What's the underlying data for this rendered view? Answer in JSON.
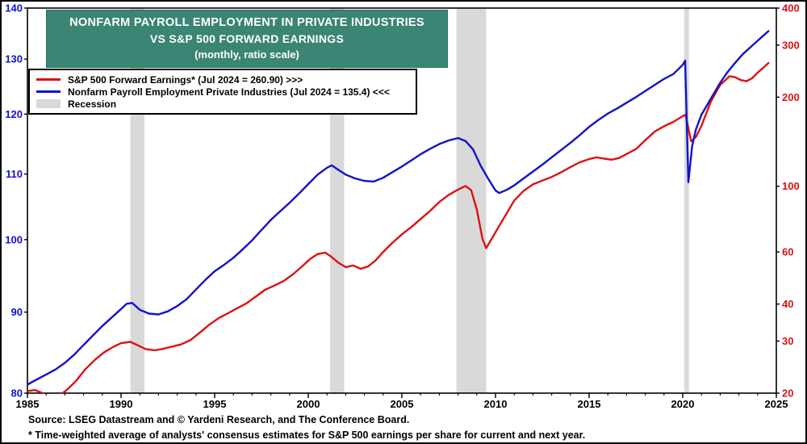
{
  "title": {
    "line1": "NONFARM PAYROLL EMPLOYMENT IN PRIVATE INDUSTRIES",
    "line2": "VS S&P 500 FORWARD EARNINGS",
    "line3": "(monthly, ratio scale)"
  },
  "legend": {
    "sp500": "S&P 500 Forward Earnings*  (Jul 2024 = 260.90) >>>",
    "payroll": "Nonfarm Payroll Employment Private Industries (Jul 2024 = 135.4) <<<",
    "recession": "Recession"
  },
  "footer": {
    "source": "Source: LSEG Datastream and © Yardeni Research, and The Conference Board.",
    "footnote": "* Time-weighted average of analysts' consensus estimates for S&P 500 earnings per share for current and next year."
  },
  "colors": {
    "sp500_red": "#dd1111",
    "payroll_blue": "#1212cc",
    "title_bg": "#3a8573",
    "recession_gray": "#d9d9d9",
    "frame_black": "#000000"
  },
  "chart_data": {
    "type": "line",
    "title": "Nonfarm Payroll Employment in Private Industries vs S&P 500 Forward Earnings (monthly, ratio scale)",
    "x_range": [
      1985,
      2025
    ],
    "x_ticks": [
      1985,
      1990,
      1995,
      2000,
      2005,
      2010,
      2015,
      2020,
      2025
    ],
    "left_axis": {
      "scale": "log",
      "range": [
        80,
        140
      ],
      "ticks": [
        80,
        90,
        100,
        110,
        120,
        130,
        140
      ],
      "color": "#1212cc"
    },
    "right_axis": {
      "scale": "log",
      "range": [
        20,
        400
      ],
      "ticks": [
        20,
        30,
        40,
        60,
        100,
        200,
        300,
        400
      ],
      "color": "#dd1111"
    },
    "recessions": [
      [
        1990.5,
        1991.25
      ],
      [
        2001.17,
        2001.92
      ],
      [
        2007.92,
        2009.5
      ],
      [
        2020.08,
        2020.33
      ]
    ],
    "series": [
      {
        "id": "sp500-forward-earnings",
        "name": "S&P 500 Forward Earnings",
        "axis": "right",
        "color": "#dd1111",
        "points": [
          [
            1985.0,
            20.3
          ],
          [
            1985.4,
            20.5
          ],
          [
            1985.8,
            20.0
          ],
          [
            1986.2,
            19.5
          ],
          [
            1986.7,
            19.6
          ],
          [
            1987.1,
            20.5
          ],
          [
            1987.6,
            22.0
          ],
          [
            1988.1,
            24.1
          ],
          [
            1988.6,
            25.9
          ],
          [
            1989.1,
            27.5
          ],
          [
            1989.6,
            28.7
          ],
          [
            1990.0,
            29.5
          ],
          [
            1990.5,
            29.8
          ],
          [
            1990.9,
            29.0
          ],
          [
            1991.3,
            28.2
          ],
          [
            1991.8,
            27.9
          ],
          [
            1992.2,
            28.2
          ],
          [
            1992.7,
            28.7
          ],
          [
            1993.2,
            29.2
          ],
          [
            1993.7,
            30.2
          ],
          [
            1994.2,
            32.0
          ],
          [
            1994.7,
            34.0
          ],
          [
            1995.2,
            35.8
          ],
          [
            1995.7,
            37.2
          ],
          [
            1996.2,
            38.7
          ],
          [
            1996.7,
            40.2
          ],
          [
            1997.2,
            42.4
          ],
          [
            1997.7,
            44.7
          ],
          [
            1998.2,
            46.2
          ],
          [
            1998.7,
            47.9
          ],
          [
            1999.2,
            50.5
          ],
          [
            1999.7,
            53.8
          ],
          [
            2000.1,
            56.8
          ],
          [
            2000.5,
            59.0
          ],
          [
            2000.9,
            59.7
          ],
          [
            2001.2,
            58.0
          ],
          [
            2001.6,
            55.2
          ],
          [
            2002.0,
            53.3
          ],
          [
            2002.4,
            54.0
          ],
          [
            2002.8,
            52.6
          ],
          [
            2003.2,
            53.6
          ],
          [
            2003.6,
            56.2
          ],
          [
            2004.0,
            60.0
          ],
          [
            2004.5,
            64.5
          ],
          [
            2005.0,
            68.8
          ],
          [
            2005.5,
            72.8
          ],
          [
            2006.0,
            77.5
          ],
          [
            2006.5,
            82.5
          ],
          [
            2007.0,
            88.5
          ],
          [
            2007.5,
            93.5
          ],
          [
            2008.0,
            97.5
          ],
          [
            2008.4,
            100.2
          ],
          [
            2008.7,
            97.0
          ],
          [
            2009.0,
            83.5
          ],
          [
            2009.3,
            66.5
          ],
          [
            2009.5,
            61.8
          ],
          [
            2009.8,
            66.5
          ],
          [
            2010.2,
            73.5
          ],
          [
            2010.6,
            81.0
          ],
          [
            2011.0,
            89.5
          ],
          [
            2011.5,
            96.5
          ],
          [
            2012.0,
            101.5
          ],
          [
            2012.5,
            104.5
          ],
          [
            2013.0,
            107.5
          ],
          [
            2013.5,
            111.5
          ],
          [
            2014.0,
            116.0
          ],
          [
            2014.5,
            120.5
          ],
          [
            2015.0,
            123.5
          ],
          [
            2015.4,
            125.2
          ],
          [
            2015.8,
            124.0
          ],
          [
            2016.2,
            123.0
          ],
          [
            2016.6,
            124.5
          ],
          [
            2017.0,
            128.5
          ],
          [
            2017.5,
            133.5
          ],
          [
            2018.0,
            143.0
          ],
          [
            2018.5,
            153.0
          ],
          [
            2019.0,
            159.5
          ],
          [
            2019.5,
            165.0
          ],
          [
            2020.0,
            172.5
          ],
          [
            2020.15,
            174.5
          ],
          [
            2020.45,
            142.0
          ],
          [
            2020.7,
            146.5
          ],
          [
            2021.0,
            160.0
          ],
          [
            2021.5,
            193.0
          ],
          [
            2022.0,
            220.0
          ],
          [
            2022.5,
            235.5
          ],
          [
            2022.8,
            233.5
          ],
          [
            2023.1,
            228.5
          ],
          [
            2023.4,
            226.5
          ],
          [
            2023.7,
            231.5
          ],
          [
            2024.0,
            242.0
          ],
          [
            2024.3,
            251.5
          ],
          [
            2024.58,
            260.9
          ]
        ]
      },
      {
        "id": "private-payroll-employment",
        "name": "Nonfarm Payroll Employment Private Industries",
        "axis": "left",
        "color": "#1212cc",
        "points": [
          [
            1985.0,
            81.0
          ],
          [
            1985.5,
            81.6
          ],
          [
            1986.0,
            82.2
          ],
          [
            1986.5,
            82.8
          ],
          [
            1987.0,
            83.6
          ],
          [
            1987.5,
            84.6
          ],
          [
            1988.0,
            85.8
          ],
          [
            1988.5,
            87.0
          ],
          [
            1989.0,
            88.2
          ],
          [
            1989.5,
            89.3
          ],
          [
            1990.0,
            90.4
          ],
          [
            1990.3,
            91.1
          ],
          [
            1990.6,
            91.2
          ],
          [
            1991.0,
            90.3
          ],
          [
            1991.5,
            89.8
          ],
          [
            1992.0,
            89.7
          ],
          [
            1992.5,
            90.1
          ],
          [
            1993.0,
            90.8
          ],
          [
            1993.5,
            91.7
          ],
          [
            1994.0,
            93.0
          ],
          [
            1994.5,
            94.3
          ],
          [
            1995.0,
            95.5
          ],
          [
            1995.5,
            96.4
          ],
          [
            1996.0,
            97.4
          ],
          [
            1996.5,
            98.6
          ],
          [
            1997.0,
            99.9
          ],
          [
            1997.5,
            101.4
          ],
          [
            1998.0,
            102.9
          ],
          [
            1998.5,
            104.2
          ],
          [
            1999.0,
            105.5
          ],
          [
            1999.5,
            106.9
          ],
          [
            2000.0,
            108.4
          ],
          [
            2000.5,
            109.9
          ],
          [
            2001.0,
            111.0
          ],
          [
            2001.25,
            111.4
          ],
          [
            2001.6,
            110.7
          ],
          [
            2002.0,
            109.9
          ],
          [
            2002.5,
            109.3
          ],
          [
            2003.0,
            108.9
          ],
          [
            2003.5,
            108.8
          ],
          [
            2004.0,
            109.4
          ],
          [
            2004.5,
            110.3
          ],
          [
            2005.0,
            111.2
          ],
          [
            2005.5,
            112.2
          ],
          [
            2006.0,
            113.2
          ],
          [
            2006.5,
            114.1
          ],
          [
            2007.0,
            114.9
          ],
          [
            2007.5,
            115.5
          ],
          [
            2008.0,
            115.9
          ],
          [
            2008.4,
            115.4
          ],
          [
            2008.8,
            114.0
          ],
          [
            2009.2,
            111.4
          ],
          [
            2009.6,
            109.3
          ],
          [
            2010.0,
            107.4
          ],
          [
            2010.2,
            107.0
          ],
          [
            2010.6,
            107.5
          ],
          [
            2011.0,
            108.2
          ],
          [
            2011.5,
            109.3
          ],
          [
            2012.0,
            110.4
          ],
          [
            2012.5,
            111.5
          ],
          [
            2013.0,
            112.7
          ],
          [
            2013.5,
            113.9
          ],
          [
            2014.0,
            115.1
          ],
          [
            2014.5,
            116.4
          ],
          [
            2015.0,
            117.8
          ],
          [
            2015.5,
            119.0
          ],
          [
            2016.0,
            120.1
          ],
          [
            2016.5,
            121.0
          ],
          [
            2017.0,
            122.0
          ],
          [
            2017.5,
            123.0
          ],
          [
            2018.0,
            124.1
          ],
          [
            2018.5,
            125.2
          ],
          [
            2019.0,
            126.3
          ],
          [
            2019.5,
            127.2
          ],
          [
            2020.0,
            128.9
          ],
          [
            2020.13,
            129.7
          ],
          [
            2020.3,
            108.7
          ],
          [
            2020.5,
            114.5
          ],
          [
            2020.7,
            117.3
          ],
          [
            2021.0,
            119.9
          ],
          [
            2021.3,
            121.6
          ],
          [
            2021.6,
            123.3
          ],
          [
            2022.0,
            125.6
          ],
          [
            2022.4,
            127.6
          ],
          [
            2022.8,
            129.3
          ],
          [
            2023.2,
            130.9
          ],
          [
            2023.6,
            132.2
          ],
          [
            2024.0,
            133.5
          ],
          [
            2024.3,
            134.5
          ],
          [
            2024.58,
            135.4
          ]
        ]
      }
    ]
  }
}
